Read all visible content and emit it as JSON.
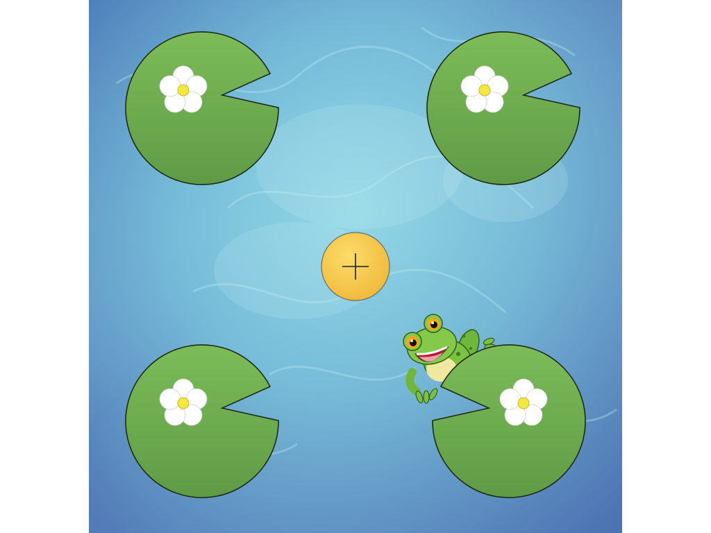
{
  "scene": {
    "colors": {
      "water_light": "#8fd6e4",
      "water_mid": "#6fb4d6",
      "water_dark": "#4d78b7",
      "pad_green": "#6aa84f",
      "pad_green_light": "#7cbc58",
      "pad_outline": "#1e2a14",
      "flower_petal": "#ffffff",
      "flower_center": "#f3e83c",
      "button_yellow": "#f6c843",
      "button_outline": "#5a5a5a",
      "frog_green": "#7cc142",
      "frog_dark": "#3e7d22"
    },
    "icons": {
      "center_button": "plus-icon",
      "pad_flower": "flower-icon",
      "character": "frog-icon"
    },
    "lily_pads": [
      {
        "id": "top-left",
        "has_flower": true
      },
      {
        "id": "top-right",
        "has_flower": true
      },
      {
        "id": "bottom-left",
        "has_flower": true
      },
      {
        "id": "bottom-right",
        "has_flower": true,
        "has_frog": true
      }
    ]
  }
}
